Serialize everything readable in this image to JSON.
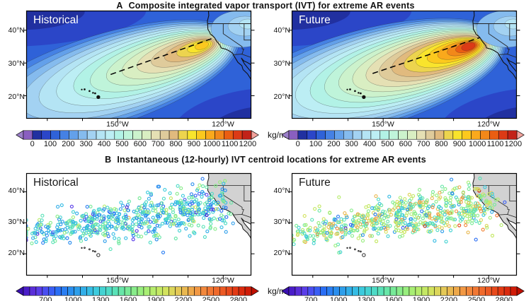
{
  "figure": {
    "panel_a": {
      "label": "A",
      "title": "Composite integrated vapor transport (IVT) for extreme AR events",
      "maps": [
        {
          "label": "Historical"
        },
        {
          "label": "Future"
        }
      ],
      "lat_ticks": [
        "40°N",
        "30°N",
        "20°N"
      ],
      "lon_ticks": [
        "150°W",
        "120°W"
      ],
      "colorbar": {
        "unit": "kg/m/s",
        "value_range": [
          -50,
          1220
        ],
        "tick_values": [
          0,
          100,
          200,
          300,
          400,
          500,
          600,
          700,
          800,
          900,
          1000,
          1100,
          1200
        ],
        "tick_labels": [
          "0",
          "100",
          "200",
          "300",
          "400",
          "500",
          "600",
          "700",
          "800",
          "900",
          "1000",
          "1100",
          "1200"
        ],
        "arrow_left": "#9b7fc8",
        "arrow_right": "#f2a39c",
        "colors": [
          "#8a5fc0",
          "#2130a0",
          "#2b46c8",
          "#2f62d8",
          "#4581e4",
          "#63a0ea",
          "#85bbee",
          "#a3d2f2",
          "#b4e4f4",
          "#bceef4",
          "#b2f2e6",
          "#bff4da",
          "#ccf2cc",
          "#d9eec2",
          "#e5e0b4",
          "#dfcb9b",
          "#e1ba7e",
          "#edd44e",
          "#f9e42c",
          "#fcc91e",
          "#faa91c",
          "#f2881a",
          "#ea5e12",
          "#dc3a16",
          "#c22218"
        ]
      }
    },
    "panel_b": {
      "label": "B",
      "title": "Instantaneous (12-hourly) IVT centroid locations for extreme AR events",
      "maps": [
        {
          "label": "Historical"
        },
        {
          "label": "Future"
        }
      ],
      "lat_ticks": [
        "40°N",
        "30°N",
        "20°N"
      ],
      "lon_ticks": [
        "150°W",
        "120°W"
      ],
      "colorbar": {
        "unit": "kg/m/s",
        "value_range": [
          460,
          2940
        ],
        "tick_values": [
          700,
          1000,
          1300,
          1600,
          1900,
          2200,
          2500,
          2800
        ],
        "tick_labels": [
          "700",
          "1000",
          "1300",
          "1600",
          "1900",
          "2200",
          "2500",
          "2800"
        ],
        "arrow_left": "#3a10b0",
        "arrow_right": "#c01000",
        "colors": [
          "#4a1dc8",
          "#5a2ed8",
          "#5a3ee8",
          "#4a4ef0",
          "#3a5ef4",
          "#2a6ef4",
          "#2a7ef2",
          "#2a8eee",
          "#2e9eea",
          "#32aee8",
          "#36bce4",
          "#3ccadd",
          "#44d2d2",
          "#4edac6",
          "#5ae2b8",
          "#68e6a8",
          "#78ea98",
          "#88ec8a",
          "#98ee7e",
          "#a8ee74",
          "#b6ec6c",
          "#c4e864",
          "#d2e25e",
          "#dcd65a",
          "#e4c856",
          "#e9b850",
          "#eea84a",
          "#f19844",
          "#f2883c",
          "#f17834",
          "#ef6a2c",
          "#ec5a24",
          "#e84a1c",
          "#e23a14",
          "#da2a0e",
          "#d01c08"
        ]
      }
    }
  },
  "chart_data": [
    {
      "type": "heatmap",
      "panel": "A",
      "title": "Composite integrated vapor transport (IVT) for extreme AR events",
      "unit": "kg/m/s",
      "colorbar_range": [
        0,
        1200
      ],
      "contour_interval": 50,
      "lon_range_w": [
        176,
        112
      ],
      "lat_range_n": [
        13,
        46
      ],
      "legend_position": "below",
      "series": [
        {
          "name": "Historical",
          "ivt_max": 975,
          "core": {
            "lon_w": 125.5,
            "lat_n": 35.5
          },
          "plume_axis": [
            [
              152,
              26.5
            ],
            [
              124.5,
              37.0
            ]
          ],
          "rx0": 192,
          "ry0": 60
        },
        {
          "name": "Future",
          "ivt_max": 1200,
          "core": {
            "lon_w": 125.2,
            "lat_n": 35.2
          },
          "plume_axis": [
            [
              153,
              26.8
            ],
            [
              123.8,
              37.3
            ]
          ],
          "rx0": 200,
          "ry0": 65
        }
      ]
    },
    {
      "type": "scatter",
      "panel": "B",
      "title": "Instantaneous (12-hourly) IVT centroid locations for extreme AR events",
      "unit": "kg/m/s",
      "marker": "open-circle",
      "marker_radius_px": 2,
      "lon_range_w": [
        176,
        112
      ],
      "lat_range_n": [
        13,
        46
      ],
      "series": [
        {
          "name": "Historical",
          "n_points": 640,
          "seed": 7,
          "ivt_mean": 1300,
          "ivt_sigma": 300,
          "lat_band_west": 26.8,
          "lat_band_east": 36.2,
          "lat_spread_deg": [
            2.1,
            4.2
          ],
          "lon_west_w": 175.5,
          "lon_east_w": 119
        },
        {
          "name": "Future",
          "n_points": 640,
          "seed": 21,
          "ivt_mean": 1700,
          "ivt_sigma": 380,
          "lat_band_west": 27.0,
          "lat_band_east": 36.5,
          "lat_spread_deg": [
            2.1,
            4.2
          ],
          "lon_west_w": 175.5,
          "lon_east_w": 119
        }
      ]
    }
  ]
}
